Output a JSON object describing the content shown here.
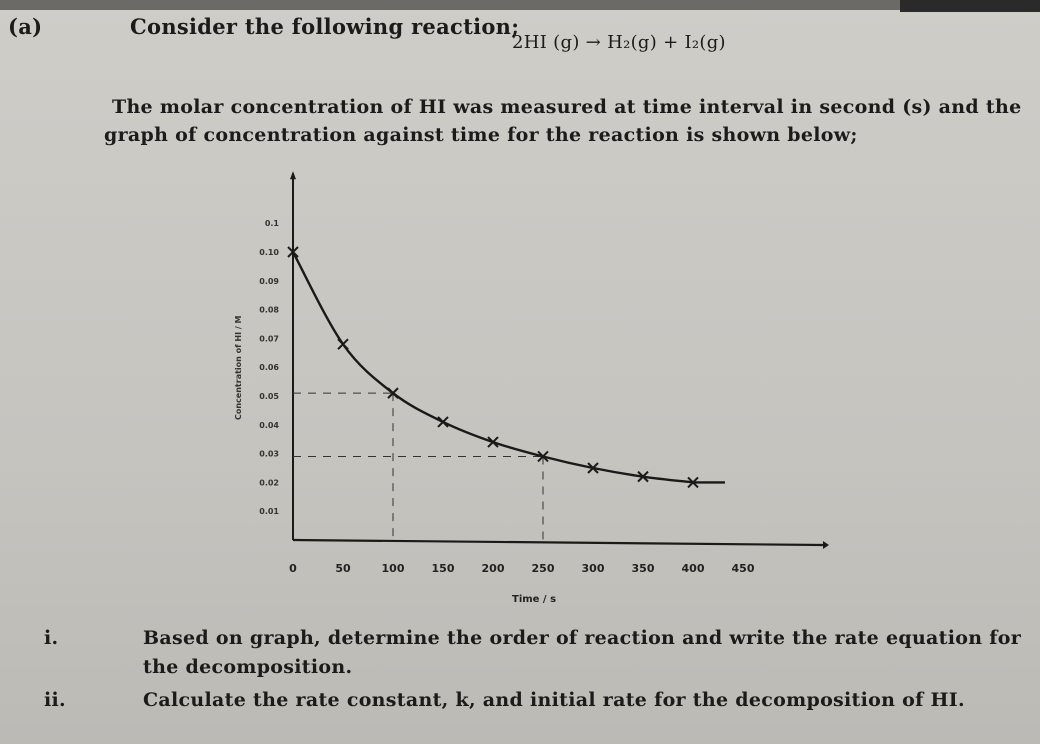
{
  "question": {
    "label": "(a)",
    "lead": "Consider the following reaction;",
    "equation": "2HI (g) → H₂(g) + I₂(g)",
    "para_line1": "The molar concentration of HI was measured at time interval in second (s) and the",
    "para_line2": "graph  of concentration against time for the reaction is shown below;",
    "items": [
      {
        "num": "i.",
        "line1": "Based on graph, determine the order of reaction and write the rate equation for",
        "line2": "the decomposition."
      },
      {
        "num": "ii.",
        "line1": "Calculate the rate constant, k, and initial rate for the decomposition of HI."
      }
    ]
  },
  "chart_data": {
    "type": "line",
    "xlabel": "Time / s",
    "ylabel": "Concentration of HI / M",
    "x_ticks": [
      "0",
      "50",
      "100",
      "150",
      "200",
      "250",
      "300",
      "350",
      "400",
      "450"
    ],
    "y_ticks": [
      "0.01",
      "0.02",
      "0.03",
      "0.04",
      "0.05",
      "0.06",
      "0.07",
      "0.08",
      "0.09",
      "0.10",
      "0.1"
    ],
    "xlim": [
      0,
      450
    ],
    "ylim": [
      0,
      0.11
    ],
    "series": [
      {
        "x": [
          0,
          50,
          100,
          150,
          200,
          250,
          300,
          350,
          400
        ],
        "y": [
          0.1,
          0.068,
          0.051,
          0.041,
          0.034,
          0.029,
          0.025,
          0.022,
          0.02
        ]
      }
    ],
    "color": "#1a1a1a"
  }
}
